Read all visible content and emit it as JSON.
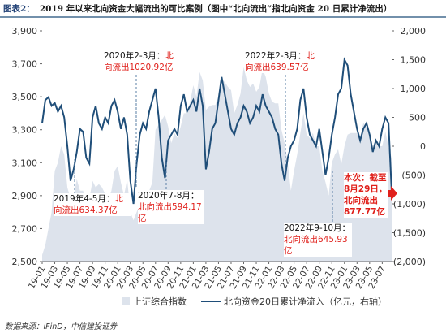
{
  "header": {
    "label": "图表2：",
    "title": "2019 年以来北向资金大幅流出的可比案例（图中“北向流出”指北向资金 20 日累计净流出）"
  },
  "chart_data": {
    "type": "dual",
    "categories": [
      "19-01",
      null,
      null,
      null,
      "19-03",
      null,
      null,
      null,
      "19-05",
      null,
      null,
      null,
      "19-07",
      null,
      null,
      null,
      "19-09",
      null,
      null,
      null,
      "19-11",
      null,
      null,
      null,
      "20-01",
      null,
      null,
      null,
      "20-03",
      null,
      null,
      null,
      "20-05",
      null,
      null,
      null,
      "20-07",
      null,
      null,
      null,
      "20-09",
      null,
      null,
      null,
      "20-11",
      null,
      null,
      null,
      "21-01",
      null,
      null,
      null,
      "21-03",
      null,
      null,
      null,
      "21-05",
      null,
      null,
      null,
      "21-07",
      null,
      null,
      null,
      "21-09",
      null,
      null,
      null,
      "21-11",
      null,
      null,
      null,
      "22-01",
      null,
      null,
      null,
      "22-03",
      null,
      null,
      null,
      "22-05",
      null,
      null,
      null,
      "22-07",
      null,
      null,
      null,
      "22-09",
      null,
      null,
      null,
      "22-11",
      null,
      null,
      null,
      "23-01",
      null,
      null,
      null,
      "23-03",
      null,
      null,
      null,
      "23-05",
      null,
      null,
      null,
      "23-07",
      null,
      null,
      null
    ],
    "series": [
      {
        "name": "上证综合指数",
        "color": "#dde3ec",
        "kind": "area",
        "values": [
          2540,
          2600,
          2700,
          2800,
          3050,
          3100,
          3200,
          3150,
          2950,
          2880,
          2900,
          3000,
          2930,
          2930,
          2830,
          2880,
          2990,
          2950,
          2970,
          2950,
          2910,
          2870,
          2930,
          3050,
          3080,
          2980,
          2900,
          3000,
          2800,
          2750,
          2800,
          2850,
          2870,
          2850,
          2930,
          2980,
          3300,
          3330,
          3360,
          3390,
          3320,
          3220,
          3280,
          3250,
          3320,
          3400,
          3400,
          3470,
          3570,
          3500,
          3650,
          3600,
          3420,
          3440,
          3450,
          3450,
          3500,
          3600,
          3590,
          3560,
          3540,
          3400,
          3450,
          3520,
          3680,
          3600,
          3560,
          3580,
          3530,
          3560,
          3670,
          3620,
          3520,
          3470,
          3460,
          3460,
          3300,
          3220,
          3100,
          2930,
          3050,
          3150,
          3280,
          3400,
          3270,
          3250,
          3280,
          3200,
          3200,
          3050,
          2980,
          2900,
          3100,
          3150,
          3180,
          3090,
          3200,
          3270,
          3280,
          3280,
          3280,
          3260,
          3340,
          3320,
          3280,
          3200,
          3240,
          3200,
          3200,
          3290,
          3190,
          3130
        ]
      },
      {
        "name": "北向资金20日累计净流入（亿元，右轴）",
        "color": "#1f4e79",
        "kind": "line",
        "axis": "y2",
        "values": [
          400,
          800,
          850,
          700,
          750,
          600,
          700,
          500,
          0,
          -600,
          -400,
          -100,
          300,
          250,
          -200,
          -300,
          500,
          700,
          400,
          300,
          500,
          400,
          700,
          800,
          600,
          300,
          500,
          200,
          -600,
          -1000,
          -300,
          200,
          400,
          300,
          600,
          800,
          1000,
          500,
          -200,
          -550,
          100,
          200,
          300,
          200,
          700,
          900,
          600,
          700,
          800,
          600,
          1000,
          700,
          -400,
          -100,
          300,
          400,
          800,
          1200,
          900,
          600,
          300,
          200,
          400,
          500,
          700,
          600,
          400,
          500,
          700,
          600,
          900,
          700,
          600,
          500,
          300,
          200,
          -300,
          -600,
          -200,
          0,
          100,
          300,
          800,
          1000,
          500,
          200,
          100,
          0,
          300,
          -100,
          -500,
          -200,
          200,
          500,
          900,
          1000,
          1500,
          1400,
          900,
          600,
          300,
          100,
          300,
          400,
          200,
          -100,
          100,
          0,
          300,
          500,
          400,
          -800
        ]
      }
    ],
    "ylim": [
      2500,
      3900
    ],
    "yticks": [
      {
        "value": 2500,
        "label": "2,500"
      },
      {
        "value": 2700,
        "label": "2,700"
      },
      {
        "value": 2900,
        "label": "2,900"
      },
      {
        "value": 3100,
        "label": "3,100"
      },
      {
        "value": 3300,
        "label": "3,300"
      },
      {
        "value": 3500,
        "label": "3,500"
      },
      {
        "value": 3700,
        "label": "3,700"
      },
      {
        "value": 3900,
        "label": "3,900"
      }
    ],
    "y2lim": [
      -2000,
      2000
    ],
    "y2ticks": [
      {
        "value": -2000,
        "label": "(2,000)"
      },
      {
        "value": -1500,
        "label": "(1,500)"
      },
      {
        "value": -1000,
        "label": "(1,000)"
      },
      {
        "value": -500,
        "label": "(500)"
      },
      0,
      500,
      {
        "value": 1000,
        "label": "1,000"
      },
      {
        "value": 1500,
        "label": "1,500"
      },
      {
        "value": 2000,
        "label": "2,000"
      }
    ],
    "annotations": [
      {
        "text": "2019年4-5月：",
        "highlight": "北向流出634.37亿"
      },
      {
        "text": "2020年2-3月：",
        "highlight": "北向流出1020.92亿"
      },
      {
        "text": "2020年7-8月：",
        "highlight": "北向流出594.17亿"
      },
      {
        "text": "2022年2-3月：",
        "highlight": "北向流出639.57亿"
      },
      {
        "text": "2022年9-10月：",
        "highlight": "北向流出645.93亿"
      },
      {
        "highlight": "本次：截至8月29日，北向流出877.77亿"
      }
    ]
  },
  "source": "数据来源：iFinD，中信建投证券"
}
